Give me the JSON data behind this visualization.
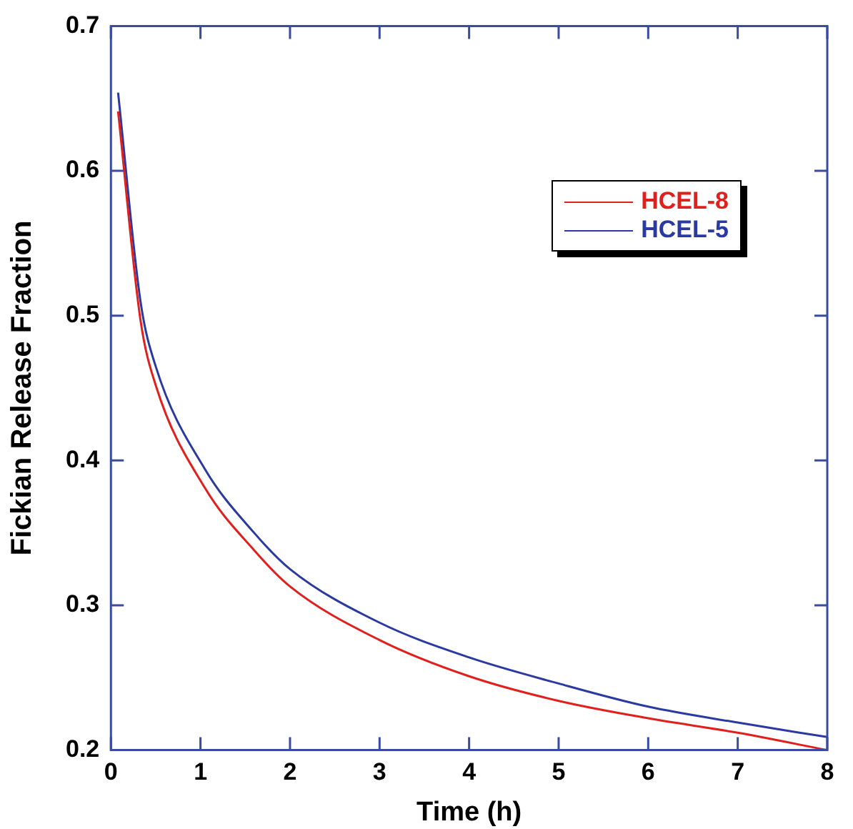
{
  "chart_data": {
    "type": "line",
    "xlabel": "Time (h)",
    "ylabel": "Fickian Release Fraction",
    "xlim": [
      0,
      8
    ],
    "ylim": [
      0.2,
      0.7
    ],
    "xticks": [
      0,
      1,
      2,
      3,
      4,
      5,
      6,
      7,
      8
    ],
    "yticks": [
      0.2,
      0.3,
      0.4,
      0.5,
      0.6,
      0.7
    ],
    "legend": "top right",
    "marker": "none",
    "line_style": "solid",
    "grid": false,
    "series": [
      {
        "name": "HCEL-8",
        "color": "#e0201c",
        "x": [
          0.08,
          0.33,
          0.5,
          1.05,
          1.6,
          2,
          3,
          4,
          5,
          6,
          7,
          8
        ],
        "values": [
          0.641,
          0.497,
          0.452,
          0.381,
          0.338,
          0.313,
          0.276,
          0.251,
          0.234,
          0.222,
          0.212,
          0.2
        ]
      },
      {
        "name": "HCEL-5",
        "color": "#2b3aa0",
        "x": [
          0.08,
          0.33,
          0.5,
          1.05,
          1.6,
          2,
          3,
          4,
          5,
          6,
          7,
          8
        ],
        "values": [
          0.654,
          0.51,
          0.465,
          0.394,
          0.35,
          0.325,
          0.288,
          0.264,
          0.246,
          0.23,
          0.219,
          0.209
        ]
      }
    ]
  }
}
